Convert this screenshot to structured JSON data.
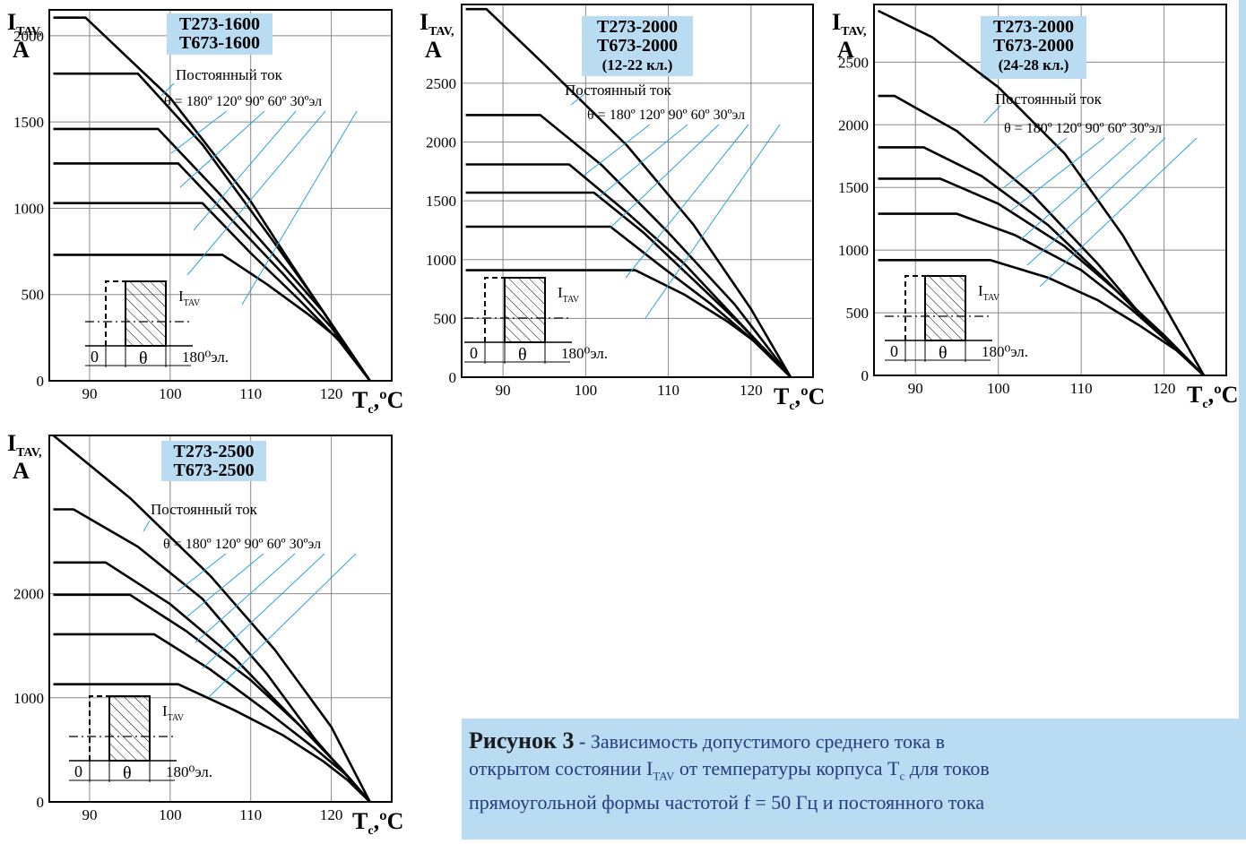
{
  "colors": {
    "curve": "#000000",
    "grid": "#888888",
    "leader": "#29a3d8",
    "tag_bg": "#b9dcf3",
    "caption_bg": "#b9dcf3",
    "caption_text": "#1f3f7e"
  },
  "common": {
    "y_label_main": "I",
    "y_label_sub": "TAV,",
    "y_label_unit": "A",
    "x_label_main": "T",
    "x_label_sub": "c",
    "x_label_unit": ",ºC",
    "dc_label": "Постоянный ток",
    "theta_eq": "θ = ",
    "angles": [
      "180º",
      "120º",
      "90º",
      "60º",
      "30ºэл"
    ],
    "inset": {
      "current": "I",
      "current_sub": "TAV",
      "zero": "0",
      "theta": "θ",
      "period": "180⁰эл."
    }
  },
  "chart_data": [
    {
      "type": "line",
      "title": [
        "Т273-1600",
        "Т673-1600"
      ],
      "xlim": [
        85,
        127.5
      ],
      "ylim": [
        0,
        2150
      ],
      "xticks": [
        90,
        100,
        110,
        120
      ],
      "yticks": [
        0,
        500,
        1000,
        1500,
        2000
      ],
      "series": [
        {
          "points": [
            [
              85.5,
              2105
            ],
            [
              89.5,
              2105
            ],
            [
              100,
              1640
            ],
            [
              110,
              1040
            ],
            [
              115,
              680
            ],
            [
              120,
              330
            ],
            [
              124.8,
              0
            ]
          ]
        },
        {
          "points": [
            [
              85.5,
              1780
            ],
            [
              96,
              1780
            ],
            [
              104,
              1370
            ],
            [
              112,
              860
            ],
            [
              118,
              470
            ],
            [
              124.8,
              0
            ]
          ]
        },
        {
          "points": [
            [
              85.5,
              1460
            ],
            [
              98.5,
              1460
            ],
            [
              106,
              1090
            ],
            [
              113,
              720
            ],
            [
              119,
              400
            ],
            [
              124.8,
              0
            ]
          ]
        },
        {
          "points": [
            [
              85.5,
              1260
            ],
            [
              101,
              1260
            ],
            [
              107.5,
              940
            ],
            [
              114,
              620
            ],
            [
              120,
              310
            ],
            [
              124.8,
              0
            ]
          ]
        },
        {
          "points": [
            [
              85.5,
              1030
            ],
            [
              104,
              1030
            ],
            [
              110,
              740
            ],
            [
              116,
              470
            ],
            [
              121,
              230
            ],
            [
              124.8,
              0
            ]
          ]
        },
        {
          "points": [
            [
              85.5,
              730
            ],
            [
              106.5,
              730
            ],
            [
              112,
              560
            ],
            [
              117,
              390
            ],
            [
              121.5,
              220
            ],
            [
              124.8,
              0
            ]
          ]
        }
      ]
    },
    {
      "type": "line",
      "title": [
        "Т273-2000",
        "Т673-2000",
        "(12-22 кл.)"
      ],
      "xlim": [
        85,
        127.5
      ],
      "ylim": [
        0,
        3170
      ],
      "xticks": [
        90,
        100,
        110,
        120
      ],
      "yticks": [
        0,
        500,
        1000,
        1500,
        2000,
        2500
      ],
      "series": [
        {
          "points": [
            [
              85.5,
              3130
            ],
            [
              88,
              3130
            ],
            [
              95,
              2660
            ],
            [
              105,
              1970
            ],
            [
              113,
              1300
            ],
            [
              120,
              580
            ],
            [
              124.8,
              0
            ]
          ]
        },
        {
          "points": [
            [
              85.5,
              2230
            ],
            [
              94.5,
              2230
            ],
            [
              102,
              1800
            ],
            [
              110,
              1230
            ],
            [
              118,
              620
            ],
            [
              124.8,
              0
            ]
          ]
        },
        {
          "points": [
            [
              85.5,
              1810
            ],
            [
              98,
              1810
            ],
            [
              105,
              1400
            ],
            [
              112,
              960
            ],
            [
              118,
              510
            ],
            [
              124.8,
              0
            ]
          ]
        },
        {
          "points": [
            [
              85.5,
              1570
            ],
            [
              101,
              1570
            ],
            [
              107,
              1230
            ],
            [
              113,
              830
            ],
            [
              119,
              430
            ],
            [
              124.8,
              0
            ]
          ]
        },
        {
          "points": [
            [
              85.5,
              1280
            ],
            [
              103,
              1280
            ],
            [
              109,
              950
            ],
            [
              115,
              630
            ],
            [
              120,
              330
            ],
            [
              124.8,
              0
            ]
          ]
        },
        {
          "points": [
            [
              85.5,
              910
            ],
            [
              106,
              910
            ],
            [
              112,
              700
            ],
            [
              117,
              480
            ],
            [
              121.5,
              250
            ],
            [
              124.8,
              0
            ]
          ]
        }
      ]
    },
    {
      "type": "line",
      "title": [
        "Т273-2000",
        "Т673-2000",
        "(24-28 кл.)"
      ],
      "xlim": [
        85,
        127.5
      ],
      "ylim": [
        0,
        2960
      ],
      "xticks": [
        90,
        100,
        110,
        120
      ],
      "yticks": [
        0,
        500,
        1000,
        1500,
        2000,
        2500
      ],
      "series": [
        {
          "points": [
            [
              85.5,
              2910
            ],
            [
              92,
              2700
            ],
            [
              100,
              2300
            ],
            [
              108,
              1770
            ],
            [
              115,
              1120
            ],
            [
              120,
              560
            ],
            [
              124.8,
              0
            ]
          ]
        },
        {
          "points": [
            [
              85.5,
              2230
            ],
            [
              87.5,
              2230
            ],
            [
              95,
              1950
            ],
            [
              104,
              1450
            ],
            [
              112,
              890
            ],
            [
              118,
              420
            ],
            [
              124.8,
              0
            ]
          ]
        },
        {
          "points": [
            [
              85.5,
              1820
            ],
            [
              91,
              1820
            ],
            [
              98,
              1590
            ],
            [
              106,
              1200
            ],
            [
              113,
              760
            ],
            [
              119,
              360
            ],
            [
              124.8,
              0
            ]
          ]
        },
        {
          "points": [
            [
              85.5,
              1570
            ],
            [
              93,
              1570
            ],
            [
              100,
              1370
            ],
            [
              108,
              1030
            ],
            [
              114,
              690
            ],
            [
              120,
              320
            ],
            [
              124.8,
              0
            ]
          ]
        },
        {
          "points": [
            [
              85.5,
              1290
            ],
            [
              95,
              1290
            ],
            [
              102,
              1120
            ],
            [
              110,
              840
            ],
            [
              116,
              530
            ],
            [
              121,
              240
            ],
            [
              124.8,
              0
            ]
          ]
        },
        {
          "points": [
            [
              85.5,
              920
            ],
            [
              99,
              920
            ],
            [
              106,
              780
            ],
            [
              112,
              600
            ],
            [
              117,
              400
            ],
            [
              121.5,
              200
            ],
            [
              124.8,
              0
            ]
          ]
        }
      ]
    },
    {
      "type": "line",
      "title": [
        "Т273-2500",
        "Т673-2500"
      ],
      "xlim": [
        85,
        127.5
      ],
      "ylim": [
        0,
        3520
      ],
      "xticks": [
        90,
        100,
        110,
        120
      ],
      "yticks": [
        0,
        1000,
        2000
      ],
      "series": [
        {
          "points": [
            [
              85.5,
              3520
            ],
            [
              95,
              2920
            ],
            [
              105,
              2170
            ],
            [
              113,
              1460
            ],
            [
              120,
              720
            ],
            [
              124.8,
              0
            ]
          ]
        },
        {
          "points": [
            [
              85.5,
              2810
            ],
            [
              88,
              2810
            ],
            [
              96,
              2450
            ],
            [
              104,
              1950
            ],
            [
              112,
              1230
            ],
            [
              118,
              600
            ],
            [
              124.8,
              0
            ]
          ]
        },
        {
          "points": [
            [
              85.5,
              2300
            ],
            [
              92,
              2300
            ],
            [
              100,
              1900
            ],
            [
              108,
              1380
            ],
            [
              115,
              820
            ],
            [
              120,
              420
            ],
            [
              124.8,
              0
            ]
          ]
        },
        {
          "points": [
            [
              85.5,
              1990
            ],
            [
              95,
              1990
            ],
            [
              102,
              1640
            ],
            [
              110,
              1170
            ],
            [
              116,
              740
            ],
            [
              121,
              340
            ],
            [
              124.8,
              0
            ]
          ]
        },
        {
          "points": [
            [
              85.5,
              1610
            ],
            [
              98,
              1610
            ],
            [
              105,
              1270
            ],
            [
              112,
              870
            ],
            [
              118,
              510
            ],
            [
              122,
              250
            ],
            [
              124.8,
              0
            ]
          ]
        },
        {
          "points": [
            [
              85.5,
              1130
            ],
            [
              101,
              1130
            ],
            [
              108,
              880
            ],
            [
              114,
              640
            ],
            [
              119,
              390
            ],
            [
              122,
              210
            ],
            [
              124.8,
              0
            ]
          ]
        }
      ]
    }
  ],
  "caption": {
    "title": "Рисунок 3",
    "dash": " - ",
    "text_1": "Зависимость допустимого среднего тока  в",
    "text_2a": "открытом состоянии I",
    "text_2sub": "TAV",
    "text_2b": " от температуры корпуса  T",
    "text_2sub2": "c",
    "text_2c": "   для токов",
    "text_3": "прямоугольной формы частотой f = 50 Гц и постоянного тока"
  }
}
